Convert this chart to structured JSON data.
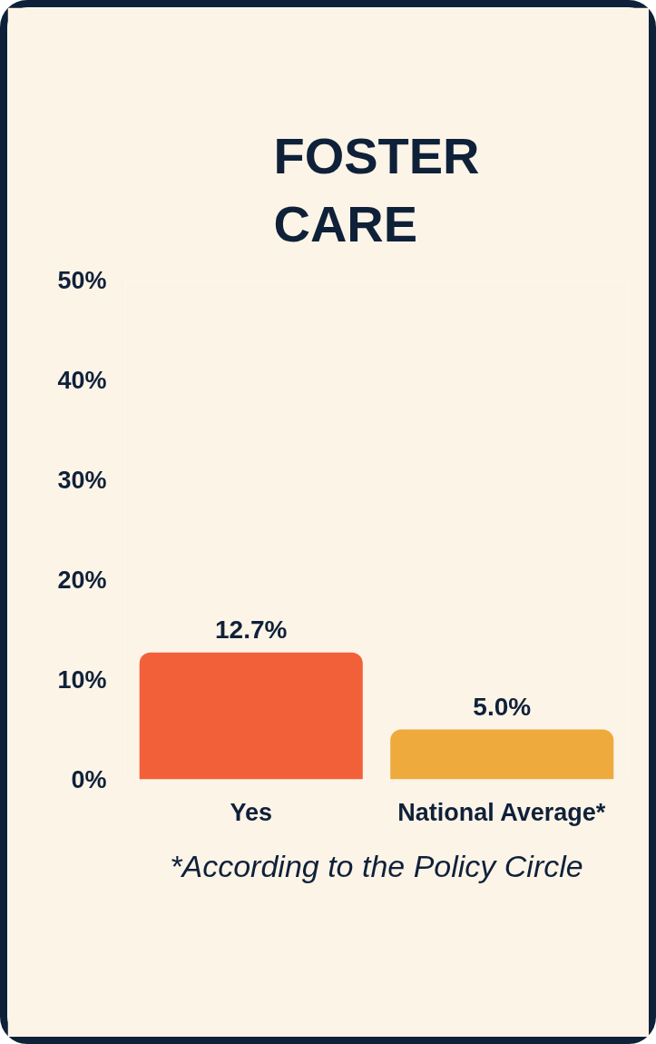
{
  "chart_data": {
    "type": "bar",
    "title": "FOSTER\nCARE",
    "categories": [
      "Yes",
      "National Average*"
    ],
    "values": [
      12.7,
      5.0
    ],
    "colors": [
      "#f2603a",
      "#eeaa3c"
    ],
    "value_labels": [
      "12.7%",
      "5.0%"
    ],
    "ylim": [
      0,
      50
    ],
    "yticks": [
      {
        "value": 0,
        "label": "0%"
      },
      {
        "value": 10,
        "label": "10%"
      },
      {
        "value": 20,
        "label": "20%"
      },
      {
        "value": 30,
        "label": "30%"
      },
      {
        "value": 40,
        "label": "40%"
      },
      {
        "value": 50,
        "label": "50%"
      }
    ],
    "grid": false,
    "annotations": [
      "*According to the Policy Circle"
    ]
  }
}
